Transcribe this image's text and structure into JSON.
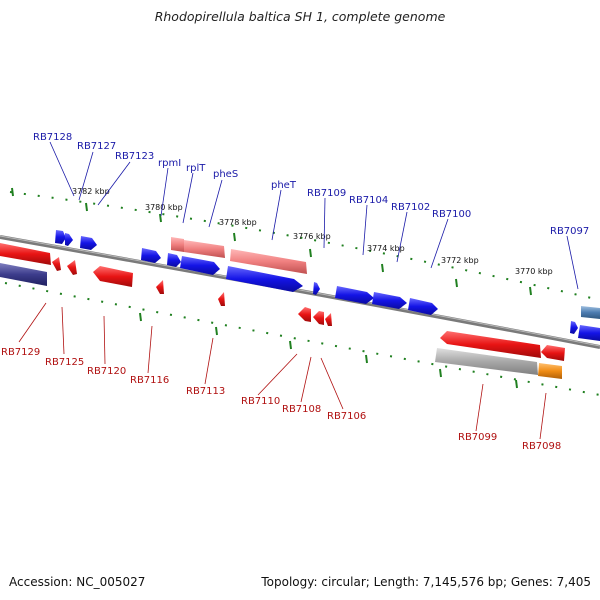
{
  "title": "Rhodopirellula baltica SH 1, complete genome",
  "footer": {
    "accession": "Accession: NC_005027",
    "topology": "Topology: circular; Length: 7,145,576 bp; Genes: 7,405"
  },
  "colors": {
    "forward_gene": "#1414e6",
    "reverse_gene": "#e81414",
    "rna_gene": "#f08080",
    "pseudo_gene": "#a8a8a8",
    "other_gene": "#f08c14",
    "backbone": "#808080",
    "tick": "#208020"
  },
  "scale_ticks": [
    "3782 kbp",
    "3780 kbp",
    "3778 kbp",
    "3776 kbp",
    "3774 kbp",
    "3772 kbp",
    "3770 kbp"
  ],
  "forward_labels": [
    "RB7128",
    "RB7127",
    "RB7123",
    "rpmI",
    "rplT",
    "pheS",
    "pheT",
    "RB7109",
    "RB7104",
    "RB7102",
    "RB7100",
    "RB7097"
  ],
  "reverse_labels": [
    "RB7129",
    "RB7125",
    "RB7120",
    "RB7116",
    "RB7113",
    "RB7110",
    "RB7108",
    "RB7106",
    "RB7099",
    "RB7098"
  ]
}
